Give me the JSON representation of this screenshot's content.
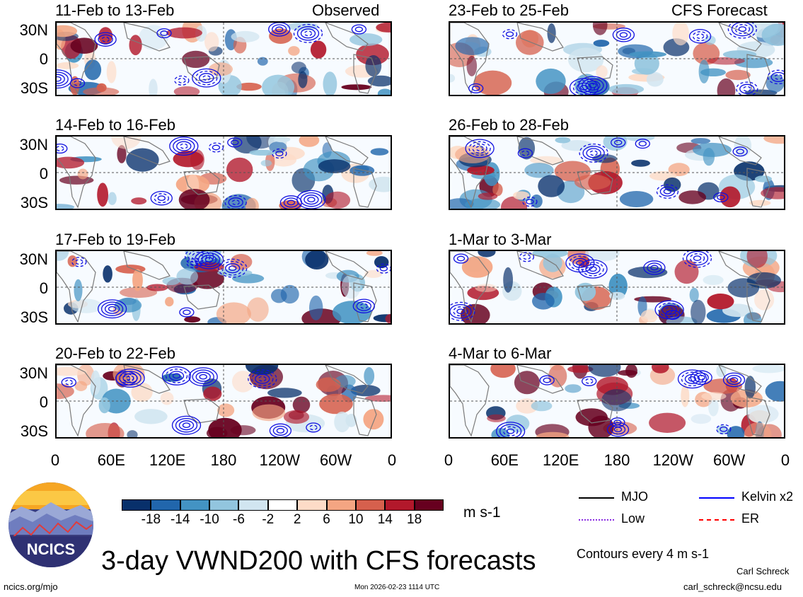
{
  "chart_data": {
    "type": "heatmap",
    "title": "3-day VWND200 with CFS forecasts",
    "variable": "VWND200",
    "units": "m s-1",
    "contour_note": "Contours every 4 m s-1",
    "columns": [
      {
        "label": "Observed",
        "panels": [
          "11-Feb to 13-Feb",
          "14-Feb to 16-Feb",
          "17-Feb to 19-Feb",
          "20-Feb to 22-Feb"
        ]
      },
      {
        "label": "CFS Forecast",
        "panels": [
          "23-Feb to 25-Feb",
          "26-Feb to 28-Feb",
          "1-Mar to 3-Mar",
          "4-Mar to 6-Mar"
        ]
      }
    ],
    "x_ticks": [
      "0",
      "60E",
      "120E",
      "180",
      "120W",
      "60W",
      "0"
    ],
    "y_ticks": [
      "30N",
      "0",
      "30S"
    ],
    "colorbar": {
      "ticks": [
        "-18",
        "-14",
        "-10",
        "-6",
        "-2",
        "2",
        "6",
        "10",
        "14",
        "18"
      ],
      "colors": [
        "#08306b",
        "#2166ac",
        "#4393c3",
        "#92c5de",
        "#d1e5f0",
        "#ffffff",
        "#fddbc7",
        "#f4a582",
        "#d6604d",
        "#b2182b",
        "#67001f"
      ]
    },
    "legend": [
      {
        "name": "MJO",
        "color": "#000000",
        "style": "solid"
      },
      {
        "name": "Kelvin x2",
        "color": "#0000ff",
        "style": "solid"
      },
      {
        "name": "Low",
        "color": "#8a2be2",
        "style": "dotted"
      },
      {
        "name": "ER",
        "color": "#ff0000",
        "style": "dashed"
      }
    ]
  },
  "footer": {
    "org_logo_text": "NCICS",
    "website": "ncics.org/mjo",
    "timestamp": "Mon 2026-02-23 1114 UTC",
    "author": "Carl Schreck",
    "email": "carl_schreck@ncsu.edu"
  }
}
